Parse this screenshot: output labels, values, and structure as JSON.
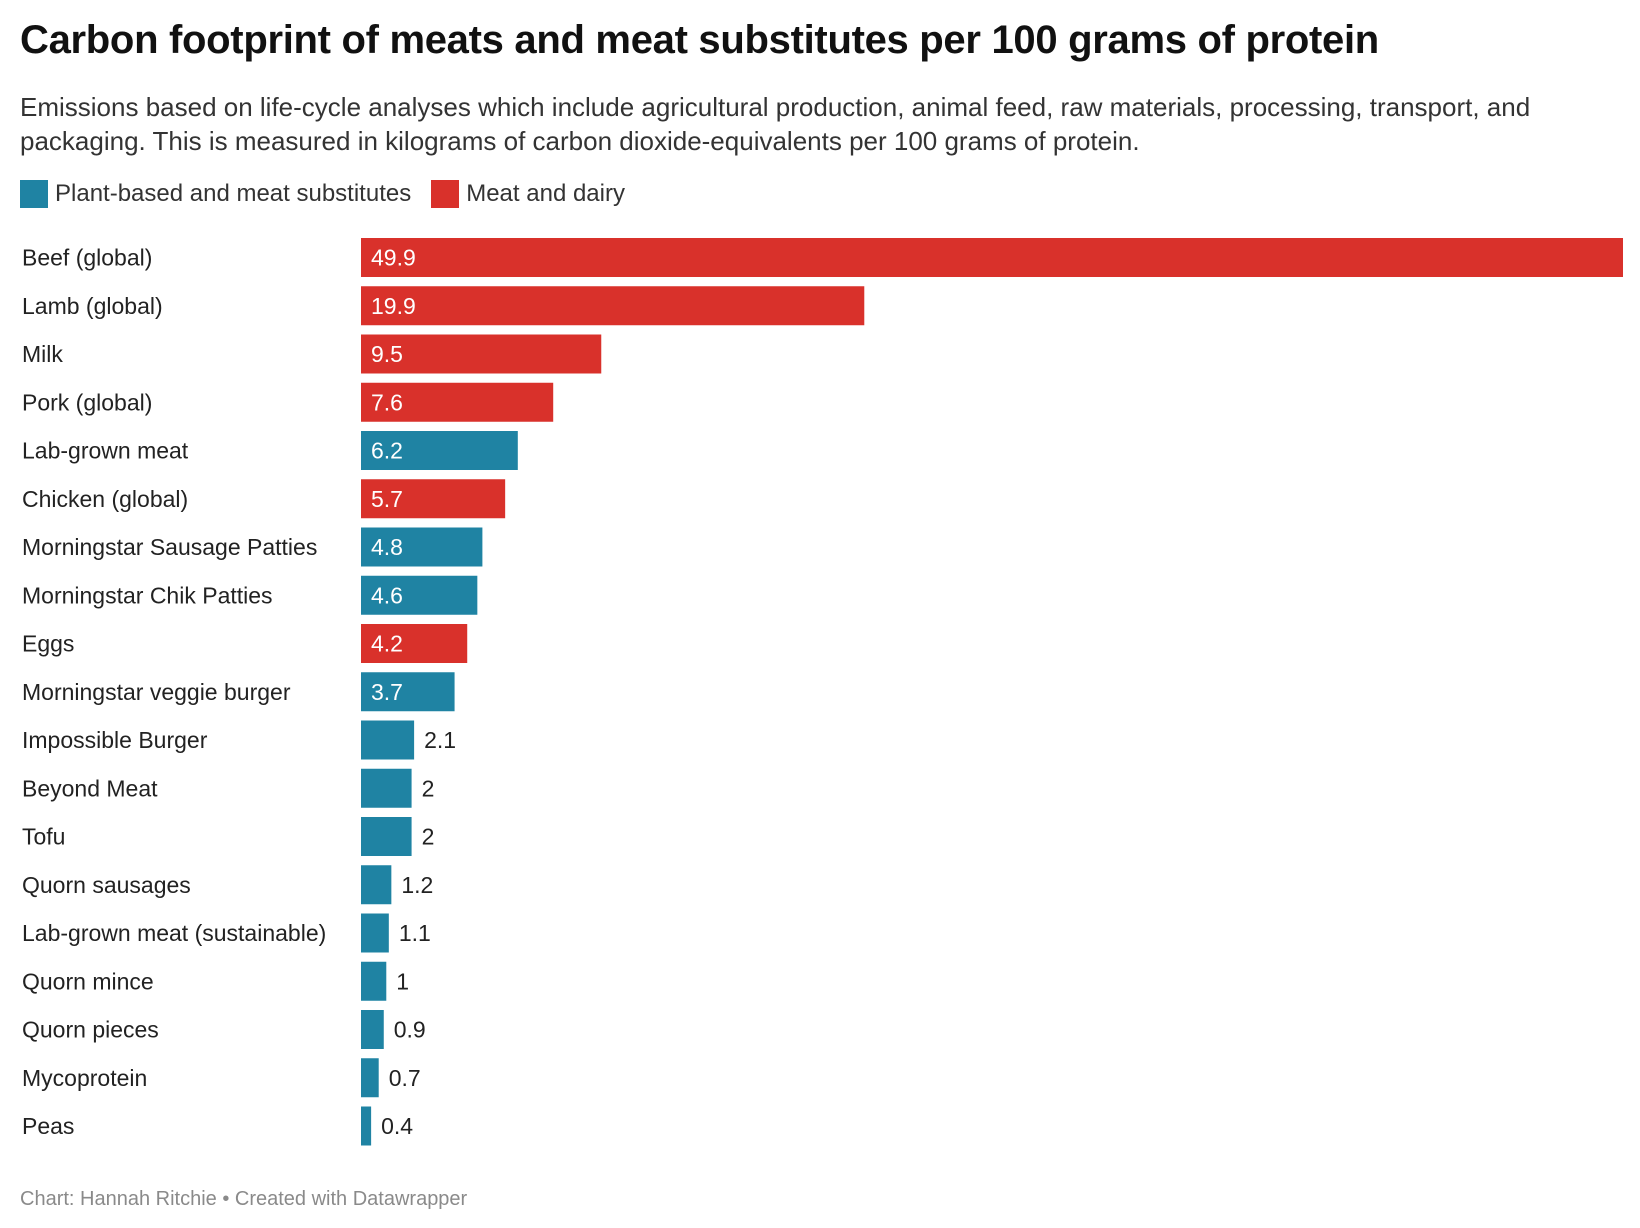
{
  "title": "Carbon footprint of meats and meat substitutes per 100 grams of protein",
  "subtitle": "Emissions based on life-cycle analyses which include agricultural production, animal feed, raw materials, processing, transport, and packaging. This is measured in kilograms of carbon dioxide-equivalents per 100 grams of protein.",
  "legend": [
    {
      "label": "Plant-based and meat substitutes",
      "color": "#1f83a3"
    },
    {
      "label": "Meat and dairy",
      "color": "#d9312b"
    }
  ],
  "footer": "Chart: Hannah Ritchie • Created with Datawrapper",
  "chart_data": {
    "type": "bar",
    "orientation": "horizontal",
    "categories": [
      "Beef (global)",
      "Lamb (global)",
      "Milk",
      "Pork (global)",
      "Lab-grown meat",
      "Chicken (global)",
      "Morningstar Sausage Patties",
      "Morningstar Chik Patties",
      "Eggs",
      "Morningstar veggie burger",
      "Impossible Burger",
      "Beyond Meat",
      "Tofu",
      "Quorn sausages",
      "Lab-grown meat (sustainable)",
      "Quorn mince",
      "Quorn pieces",
      "Mycoprotein",
      "Peas"
    ],
    "values": [
      49.9,
      19.9,
      9.5,
      7.6,
      6.2,
      5.7,
      4.8,
      4.6,
      4.2,
      3.7,
      2.1,
      2,
      2,
      1.2,
      1.1,
      1,
      0.9,
      0.7,
      0.4
    ],
    "value_labels": [
      "49.9",
      "19.9",
      "9.5",
      "7.6",
      "6.2",
      "5.7",
      "4.8",
      "4.6",
      "4.2",
      "3.7",
      "2.1",
      "2",
      "2",
      "1.2",
      "1.1",
      "1",
      "0.9",
      "0.7",
      "0.4"
    ],
    "groups": [
      "Meat and dairy",
      "Meat and dairy",
      "Meat and dairy",
      "Meat and dairy",
      "Plant-based and meat substitutes",
      "Meat and dairy",
      "Plant-based and meat substitutes",
      "Plant-based and meat substitutes",
      "Meat and dairy",
      "Plant-based and meat substitutes",
      "Plant-based and meat substitutes",
      "Plant-based and meat substitutes",
      "Plant-based and meat substitutes",
      "Plant-based and meat substitutes",
      "Plant-based and meat substitutes",
      "Plant-based and meat substitutes",
      "Plant-based and meat substitutes",
      "Plant-based and meat substitutes",
      "Plant-based and meat substitutes"
    ],
    "xlim": [
      0,
      49.9
    ],
    "grid": false
  }
}
